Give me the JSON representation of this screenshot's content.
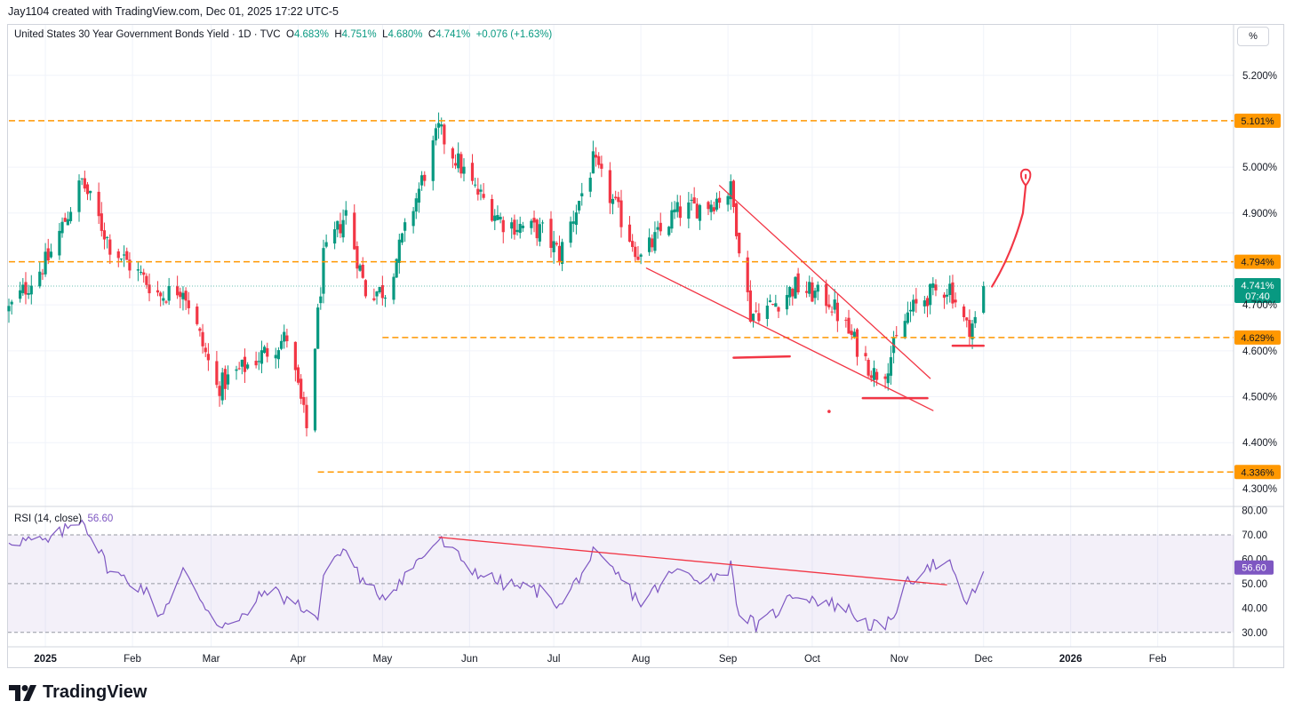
{
  "header": {
    "attribution": "Jay1104 created with TradingView.com, Dec 01, 2025 17:22 UTC-5"
  },
  "legend": {
    "symbol": "United States 30 Year Government Bonds Yield · 1D · TVC",
    "o_label": "O",
    "o_value": "4.683%",
    "h_label": "H",
    "h_value": "4.751%",
    "l_label": "L",
    "l_value": "4.680%",
    "c_label": "C",
    "c_value": "4.741%",
    "change": "+0.076 (+1.63%)"
  },
  "scale_button": "%",
  "rsi_legend": {
    "label": "RSI (14, close)",
    "value": "56.60"
  },
  "logo_text": "TradingView",
  "colors": {
    "up": "#089981",
    "down": "#f23645",
    "level": "#ff9800",
    "drawing": "#f23645",
    "rsi": "#7e57c2",
    "rsi_band": "#7e57c2",
    "grid": "#f0f3fa"
  },
  "chart_data": {
    "type": "candlestick",
    "interval": "1D",
    "x_range": [
      "2024-12-19",
      "2026-02-28"
    ],
    "x_ticks": [
      {
        "date": "2025-01-01",
        "label": "2025"
      },
      {
        "date": "2025-02-01",
        "label": "Feb"
      },
      {
        "date": "2025-03-01",
        "label": "Mar"
      },
      {
        "date": "2025-04-01",
        "label": "Apr"
      },
      {
        "date": "2025-05-01",
        "label": "May"
      },
      {
        "date": "2025-06-01",
        "label": "Jun"
      },
      {
        "date": "2025-07-01",
        "label": "Jul"
      },
      {
        "date": "2025-08-01",
        "label": "Aug"
      },
      {
        "date": "2025-09-01",
        "label": "Sep"
      },
      {
        "date": "2025-10-01",
        "label": "Oct"
      },
      {
        "date": "2025-11-01",
        "label": "Nov"
      },
      {
        "date": "2025-12-01",
        "label": "Dec"
      },
      {
        "date": "2026-01-01",
        "label": "2026"
      },
      {
        "date": "2026-02-01",
        "label": "Feb"
      }
    ],
    "price_axis": {
      "range": [
        4.265,
        5.275
      ],
      "ticks": [
        "5.200%",
        "5.000%",
        "4.900%",
        "4.700%",
        "4.600%",
        "4.500%",
        "4.400%",
        "4.300%"
      ],
      "tick_values": [
        5.2,
        5.0,
        4.9,
        4.7,
        4.6,
        4.5,
        4.4,
        4.3
      ]
    },
    "price_anchors": [
      [
        "2024-12-19",
        4.69
      ],
      [
        "2025-01-02",
        4.8
      ],
      [
        "2025-01-14",
        4.97
      ],
      [
        "2025-01-24",
        4.83
      ],
      [
        "2025-02-11",
        4.72
      ],
      [
        "2025-02-19",
        4.74
      ],
      [
        "2025-03-03",
        4.52
      ],
      [
        "2025-03-21",
        4.6
      ],
      [
        "2025-03-28",
        4.63
      ],
      [
        "2025-04-04",
        4.43
      ],
      [
        "2025-04-10",
        4.8
      ],
      [
        "2025-04-18",
        4.9
      ],
      [
        "2025-04-25",
        4.73
      ],
      [
        "2025-05-02",
        4.73
      ],
      [
        "2025-05-21",
        5.08
      ],
      [
        "2025-06-03",
        4.95
      ],
      [
        "2025-06-13",
        4.88
      ],
      [
        "2025-06-27",
        4.86
      ],
      [
        "2025-07-03",
        4.81
      ],
      [
        "2025-07-15",
        5.01
      ],
      [
        "2025-07-24",
        4.9
      ],
      [
        "2025-08-01",
        4.8
      ],
      [
        "2025-08-13",
        4.9
      ],
      [
        "2025-08-25",
        4.92
      ],
      [
        "2025-09-02",
        4.95
      ],
      [
        "2025-09-09",
        4.68
      ],
      [
        "2025-09-17",
        4.7
      ],
      [
        "2025-09-25",
        4.74
      ],
      [
        "2025-10-07",
        4.71
      ],
      [
        "2025-10-13",
        4.65
      ],
      [
        "2025-10-23",
        4.55
      ],
      [
        "2025-10-27",
        4.56
      ],
      [
        "2025-11-04",
        4.68
      ],
      [
        "2025-11-11",
        4.72
      ],
      [
        "2025-11-19",
        4.74
      ],
      [
        "2025-11-25",
        4.65
      ],
      [
        "2025-11-28",
        4.665
      ],
      [
        "2025-12-01",
        4.741
      ]
    ],
    "last_price": {
      "value": 4.741,
      "label": "4.741%",
      "countdown": "07:40"
    },
    "levels": [
      {
        "value": 5.101,
        "label": "5.101%",
        "start": "2024-12-19"
      },
      {
        "value": 4.794,
        "label": "4.794%",
        "start": "2024-12-19"
      },
      {
        "value": 4.629,
        "label": "4.629%",
        "start": "2025-05-01"
      },
      {
        "value": 4.336,
        "label": "4.336%",
        "start": "2025-04-08"
      }
    ],
    "annotations": {
      "wedge_upper": [
        [
          "2025-08-29",
          4.96
        ],
        [
          "2025-11-12",
          4.54
        ]
      ],
      "wedge_lower": [
        [
          "2025-08-03",
          4.78
        ],
        [
          "2025-11-13",
          4.47
        ]
      ],
      "marks": [
        [
          [
            "2025-09-03",
            4.585
          ],
          [
            "2025-09-23",
            4.588
          ]
        ],
        [
          [
            "2025-10-19",
            4.497
          ],
          [
            "2025-11-11",
            4.497
          ]
        ],
        [
          [
            "2025-11-20",
            4.611
          ],
          [
            "2025-12-01",
            4.611
          ]
        ]
      ],
      "dot": [
        "2025-10-07",
        4.468
      ],
      "arrow": [
        [
          "2025-12-04",
          4.74
        ],
        [
          "2025-12-11",
          4.81
        ],
        [
          "2025-12-15",
          4.9
        ],
        [
          "2025-12-16",
          4.96
        ]
      ]
    },
    "rsi": {
      "label": "RSI (14, close)",
      "range": [
        27,
        82
      ],
      "ticks": [
        "80.00",
        "70.00",
        "60.00",
        "50.00",
        "40.00",
        "30.00"
      ],
      "tick_values": [
        80,
        70,
        60,
        50,
        40,
        30
      ],
      "band": [
        30,
        70
      ],
      "mid": 50,
      "current": "56.60",
      "anchors": [
        [
          "2024-12-19",
          68
        ],
        [
          "2025-01-02",
          67
        ],
        [
          "2025-01-14",
          77
        ],
        [
          "2025-01-24",
          55
        ],
        [
          "2025-02-05",
          48
        ],
        [
          "2025-02-11",
          37
        ],
        [
          "2025-02-19",
          55
        ],
        [
          "2025-03-03",
          34
        ],
        [
          "2025-03-10",
          33
        ],
        [
          "2025-03-21",
          48
        ],
        [
          "2025-04-03",
          40
        ],
        [
          "2025-04-08",
          36
        ],
        [
          "2025-04-11",
          58
        ],
        [
          "2025-04-18",
          64
        ],
        [
          "2025-04-25",
          48
        ],
        [
          "2025-05-02",
          45
        ],
        [
          "2025-05-21",
          68
        ],
        [
          "2025-06-03",
          55
        ],
        [
          "2025-06-13",
          50
        ],
        [
          "2025-06-30",
          46
        ],
        [
          "2025-07-03",
          40
        ],
        [
          "2025-07-15",
          62
        ],
        [
          "2025-07-24",
          53
        ],
        [
          "2025-08-01",
          42
        ],
        [
          "2025-08-13",
          55
        ],
        [
          "2025-08-25",
          52
        ],
        [
          "2025-09-02",
          57
        ],
        [
          "2025-09-05",
          38
        ],
        [
          "2025-09-12",
          32
        ],
        [
          "2025-09-25",
          46
        ],
        [
          "2025-10-07",
          42
        ],
        [
          "2025-10-13",
          40
        ],
        [
          "2025-10-20",
          34
        ],
        [
          "2025-10-27",
          31
        ],
        [
          "2025-11-04",
          50
        ],
        [
          "2025-11-11",
          58
        ],
        [
          "2025-11-19",
          57
        ],
        [
          "2025-11-25",
          42
        ],
        [
          "2025-11-28",
          47
        ],
        [
          "2025-12-01",
          56.6
        ]
      ],
      "trendline": [
        [
          "2025-05-21",
          69
        ],
        [
          "2025-11-18",
          49.5
        ]
      ]
    }
  }
}
